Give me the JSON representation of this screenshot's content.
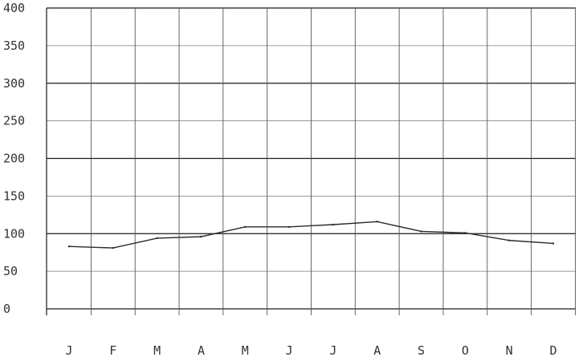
{
  "chart_data": {
    "type": "line",
    "categories": [
      "J",
      "F",
      "M",
      "A",
      "M",
      "J",
      "J",
      "A",
      "S",
      "O",
      "N",
      "D"
    ],
    "y_ticks": [
      "0",
      "50",
      "100",
      "150",
      "200",
      "250",
      "300",
      "350",
      "400"
    ],
    "ylim": [
      0,
      400
    ],
    "grid": true,
    "series": [
      {
        "values": [
          83,
          81,
          94,
          96,
          109,
          109,
          112,
          116,
          103,
          101,
          91,
          87
        ]
      }
    ],
    "colors": {
      "line": "#2a2a2a",
      "grid": "#1a1a1a",
      "background": "#ffffff"
    }
  }
}
